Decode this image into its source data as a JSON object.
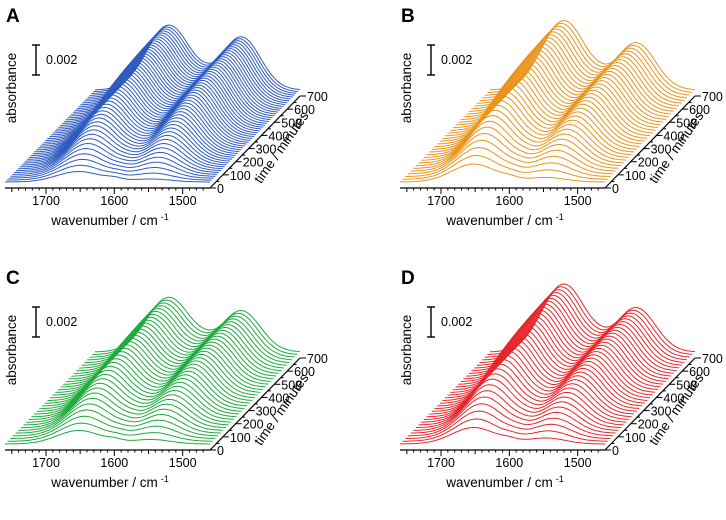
{
  "figure": {
    "description_panels": [
      "A",
      "B",
      "C",
      "D"
    ]
  },
  "chart_data": [
    {
      "type": "line",
      "panel": "A",
      "title": "",
      "color": "#2f5cc0",
      "xlabel": "wavenumber / cm",
      "xlabel_superscript": "-1",
      "ylabel": "absorbance",
      "zlabel": "time / minutes",
      "x_ticks": [
        "1700",
        "1600",
        "1500"
      ],
      "xlim": [
        1760,
        1460
      ],
      "z_ticks": [
        "0",
        "100",
        "200",
        "300",
        "400",
        "500",
        "600",
        "700"
      ],
      "zlim": [
        0,
        700
      ],
      "scale_bar": {
        "label": "0.002",
        "value": 0.002
      },
      "n_traces": 50,
      "peak_positions_cm-1": [
        1652,
        1546
      ],
      "peak_max_absorbance": [
        0.0044,
        0.0036
      ],
      "initial_peak_absorbance": [
        0.0007,
        0.0002
      ]
    },
    {
      "type": "line",
      "panel": "B",
      "title": "",
      "color": "#e8951e",
      "xlabel": "wavenumber / cm",
      "xlabel_superscript": "-1",
      "ylabel": "absorbance",
      "zlabel": "time / minutes",
      "x_ticks": [
        "1700",
        "1600",
        "1500"
      ],
      "xlim": [
        1760,
        1460
      ],
      "z_ticks": [
        "0",
        "100",
        "200",
        "300",
        "400",
        "500",
        "600",
        "700"
      ],
      "zlim": [
        0,
        700
      ],
      "scale_bar": {
        "label": "0.002",
        "value": 0.002
      },
      "n_traces": 35,
      "peak_positions_cm-1": [
        1652,
        1546
      ],
      "peak_max_absorbance": [
        0.0047,
        0.0032
      ],
      "initial_peak_absorbance": [
        0.0012,
        0.0003
      ]
    },
    {
      "type": "line",
      "panel": "C",
      "title": "",
      "color": "#1faa3e",
      "xlabel": "wavenumber / cm",
      "xlabel_superscript": "-1",
      "ylabel": "absorbance",
      "zlabel": "time / minutes",
      "x_ticks": [
        "1700",
        "1600",
        "1500"
      ],
      "xlim": [
        1760,
        1460
      ],
      "z_ticks": [
        "0",
        "100",
        "200",
        "300",
        "400",
        "500",
        "600",
        "700"
      ],
      "zlim": [
        0,
        700
      ],
      "scale_bar": {
        "label": "0.002",
        "value": 0.002
      },
      "n_traces": 35,
      "peak_positions_cm-1": [
        1652,
        1546
      ],
      "peak_max_absorbance": [
        0.0037,
        0.0028
      ],
      "initial_peak_absorbance": [
        0.0009,
        0.0003
      ]
    },
    {
      "type": "line",
      "panel": "D",
      "title": "",
      "color": "#e8262a",
      "xlabel": "wavenumber / cm",
      "xlabel_superscript": "-1",
      "ylabel": "absorbance",
      "zlabel": "time / minutes",
      "x_ticks": [
        "1700",
        "1600",
        "1500"
      ],
      "xlim": [
        1760,
        1460
      ],
      "z_ticks": [
        "0",
        "100",
        "200",
        "300",
        "400",
        "500",
        "600",
        "700"
      ],
      "zlim": [
        0,
        700
      ],
      "scale_bar": {
        "label": "0.002",
        "value": 0.002
      },
      "n_traces": 35,
      "peak_positions_cm-1": [
        1652,
        1546
      ],
      "peak_max_absorbance": [
        0.0046,
        0.003
      ],
      "initial_peak_absorbance": [
        0.0011,
        0.0004
      ]
    }
  ]
}
